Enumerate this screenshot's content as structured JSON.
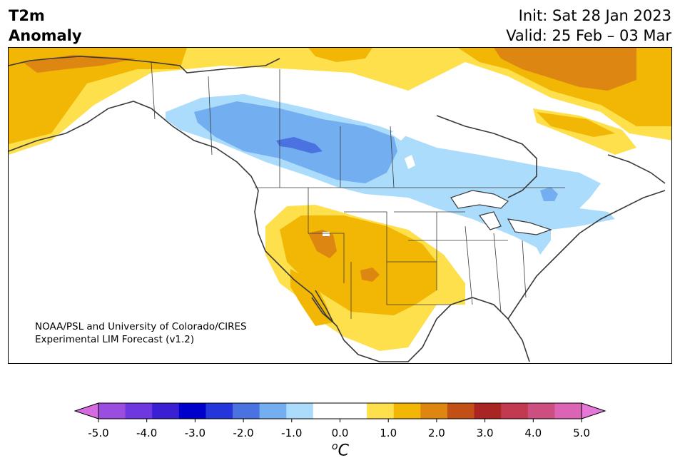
{
  "header": {
    "title_line1": "T2m",
    "title_line2": "Anomaly",
    "init_text": "Init: Sat 28 Jan 2023",
    "valid_text": "Valid: 25 Feb – 03 Mar"
  },
  "map": {
    "credit_line1": "NOAA/PSL and University of Colorado/CIRES",
    "credit_line2": "Experimental LIM Forecast (v1.2)",
    "colors": {
      "land_outline": "#3a3a3a",
      "neutral": "#ffffff"
    }
  },
  "colorbar": {
    "unit_base": "C",
    "unit_sup": "o",
    "ticks": [
      "-5.0",
      "-4.0",
      "-3.0",
      "-2.0",
      "-1.0",
      "0.0",
      "1.0",
      "2.0",
      "3.0",
      "4.0",
      "5.0"
    ],
    "colors": [
      "#d46be0",
      "#9b4de0",
      "#6d38e0",
      "#3a1fd4",
      "#0000cd",
      "#2436d9",
      "#4a72e0",
      "#72aef0",
      "#abdcfb",
      "#ffffff",
      "#ffffff",
      "#fde04c",
      "#f2b705",
      "#de8612",
      "#c24f16",
      "#aa2424",
      "#c13a50",
      "#cd4e80",
      "#dc64b4",
      "#e677d8"
    ]
  }
}
